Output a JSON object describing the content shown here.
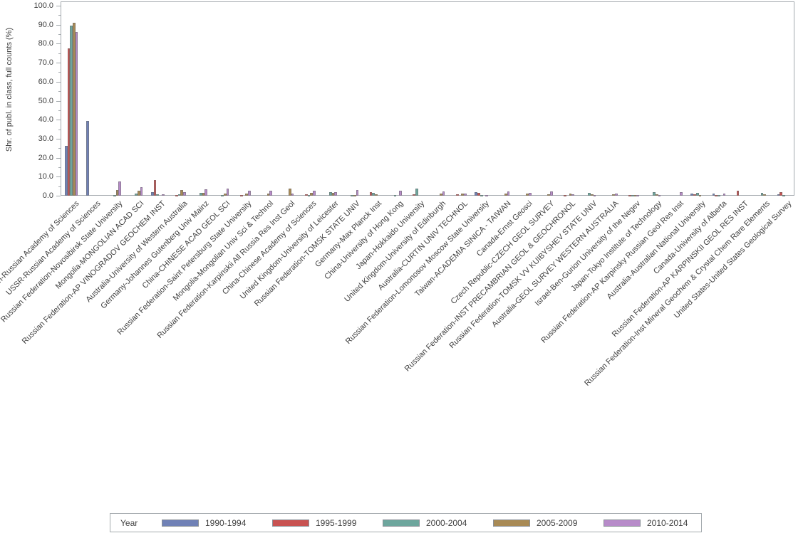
{
  "page": {
    "background": "#ffffff"
  },
  "chart_data": {
    "type": "bar",
    "title": "",
    "xlabel": "",
    "ylabel": "Shr. of publ. in class, full counts (%)",
    "ylim": [
      0,
      100
    ],
    "ytick_step": 10,
    "minor_tick_step": 5,
    "ytick_labels": [
      "0.0",
      "10.0",
      "20.0",
      "30.0",
      "40.0",
      "50.0",
      "60.0",
      "70.0",
      "80.0",
      "90.0",
      "100.0"
    ],
    "grid": false,
    "legend_title": "Year",
    "legend_position": "bottom",
    "categories": [
      "Russian Federation-Russian Academy of Sciences",
      "USSR-Russian Academy of Sciences",
      "Russian Federation-Novosibirsk State University",
      "Mongolia-MONGOLIAN ACAD SCI",
      "Russian Federation-AP VINOGRADOV GEOCHEM INST",
      "Australia-University of Western Australia",
      "Germany-Johannes Gutenberg Univ Mainz",
      "China-CHINESE ACAD GEOL SCI",
      "Russian Federation-Saint Petersburg State University",
      "Mongolia-Mongolian Univ Sci & Technol",
      "Russian Federation-Karpinskii All Russia Res Inst Geol",
      "China-Chinese Academy of Sciences",
      "United Kingdom-University of Leicester",
      "Russian Federation-TOMSK STATE UNIV",
      "Germany-Max Planck Inst",
      "China-University of Hong Kong",
      "Japan-Hokkaido University",
      "United Kingdom-University of Edinburgh",
      "Australia-CURTIN UNIV TECHNOL",
      "Russian Federation-Lomonosov Moscow State University",
      "Taiwan-ACADEMIA SINICA - TAIWAN",
      "Canada-Ernst Geosci",
      "Czech Republic-CZECH GEOL SURVEY",
      "Russian Federation-INST PRECAMBRIAN GEOL & GEOCHRONOL",
      "Russian Federation-TOMSK VV KUIBYSHEV STATE UNIV",
      "Australia-GEOL SURVEY WESTERN AUSTRALIA",
      "Israel-Ben-Gurion University of the Negev",
      "Japan-Tokyo Institute of Technology",
      "Russian Federation-AP Karpinsky Russian Geol Res Inst",
      "Australia-Australian National University",
      "Canada-University of Alberta",
      "Russian Federation-AP KARPINSKII GEOL RES INST",
      "Russian Federation-Inst Mineral Geochem & Crystal Chem Rare Elements",
      "United States-United States Geological Survey"
    ],
    "series": [
      {
        "name": "1990-1994",
        "color": "#7081b6",
        "values": [
          26.2,
          39.3,
          0,
          0,
          1.8,
          0,
          0,
          0,
          0,
          0,
          0,
          0,
          0,
          0,
          0,
          0,
          0,
          0,
          0,
          2.0,
          0,
          0,
          0,
          0,
          0,
          0,
          0,
          0,
          0,
          1.0,
          1.0,
          0,
          0,
          0.6
        ]
      },
      {
        "name": "1995-1999",
        "color": "#c85251",
        "values": [
          77.5,
          0,
          0,
          0,
          8.4,
          0.5,
          0,
          0,
          0.5,
          0,
          0,
          0.6,
          0,
          0,
          1.7,
          0,
          0.9,
          0,
          0.9,
          1.5,
          0,
          0,
          0,
          0.5,
          0,
          0,
          0.4,
          0,
          0,
          0.6,
          0.5,
          2.8,
          0,
          1.8
        ]
      },
      {
        "name": "2000-2004",
        "color": "#6da69d",
        "values": [
          89.5,
          0,
          0.3,
          1.3,
          0.8,
          0.8,
          1.5,
          0.3,
          0,
          0,
          0,
          0.4,
          2.0,
          0.2,
          1.5,
          0.3,
          3.6,
          0,
          0,
          0.3,
          0,
          0,
          0,
          0,
          1.5,
          0,
          0.5,
          1.8,
          0,
          1.5,
          0.3,
          0,
          1.6,
          0.5
        ]
      },
      {
        "name": "2005-2009",
        "color": "#a88a55",
        "values": [
          91.0,
          0,
          3.0,
          2.5,
          0,
          2.9,
          1.4,
          1.0,
          1.0,
          1.3,
          3.8,
          1.4,
          1.4,
          0.3,
          0.9,
          0,
          0,
          1.3,
          1.1,
          0,
          1.1,
          1.3,
          0.9,
          1.0,
          0.9,
          0.9,
          0.4,
          0.8,
          0,
          0.3,
          0,
          0,
          0.6,
          0
        ]
      },
      {
        "name": "2010-2014",
        "color": "#b78bc9",
        "values": [
          86.0,
          0,
          7.6,
          4.4,
          0.9,
          1.8,
          3.5,
          3.8,
          2.8,
          2.7,
          1.0,
          2.8,
          1.8,
          3.0,
          0,
          2.7,
          0,
          2.3,
          1.1,
          0.4,
          2.3,
          1.6,
          2.3,
          0.8,
          0.4,
          1.0,
          0.5,
          0.3,
          1.9,
          0,
          1.0,
          0,
          0,
          0
        ]
      }
    ]
  },
  "colors": {
    "frame": "#a4aaae",
    "text": "#3f3f3f",
    "background": "#ffffff"
  }
}
